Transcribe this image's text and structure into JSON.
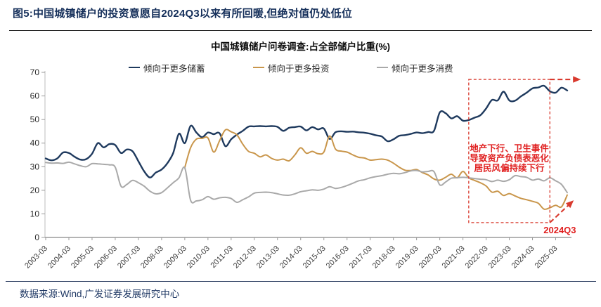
{
  "page": {
    "figure_title": "图5:中国城镇储户的投资意愿自2024Q3以来有所回暖,但绝对值仍处低位",
    "source_text": "数据来源:Wind,广发证券发展研究中心"
  },
  "chart_data": {
    "type": "line",
    "title": "中国城镇储户问卷调查:占全部储户比重(%)",
    "grid": false,
    "legend_position": "top",
    "ylim": [
      0,
      70
    ],
    "yticks": [
      0,
      10,
      20,
      30,
      40,
      50,
      60,
      70
    ],
    "xticks": [
      "2003-03",
      "2004-03",
      "2005-03",
      "2006-03",
      "2007-03",
      "2008-03",
      "2009-03",
      "2010-03",
      "2011-03",
      "2012-03",
      "2013-03",
      "2014-03",
      "2015-03",
      "2016-03",
      "2017-03",
      "2018-03",
      "2019-03",
      "2020-03",
      "2021-03",
      "2022-03",
      "2023-03",
      "2024-03",
      "2025-03"
    ],
    "x": [
      "2003-03",
      "2003-06",
      "2003-09",
      "2003-12",
      "2004-03",
      "2004-06",
      "2004-09",
      "2004-12",
      "2005-03",
      "2005-06",
      "2005-09",
      "2005-12",
      "2006-03",
      "2006-06",
      "2006-09",
      "2006-12",
      "2007-03",
      "2007-06",
      "2007-09",
      "2007-12",
      "2008-03",
      "2008-06",
      "2008-09",
      "2008-12",
      "2009-03",
      "2009-06",
      "2009-09",
      "2009-12",
      "2010-03",
      "2010-06",
      "2010-09",
      "2010-12",
      "2011-03",
      "2011-06",
      "2011-09",
      "2011-12",
      "2012-03",
      "2012-06",
      "2012-09",
      "2012-12",
      "2013-03",
      "2013-06",
      "2013-09",
      "2013-12",
      "2014-03",
      "2014-06",
      "2014-09",
      "2014-12",
      "2015-03",
      "2015-06",
      "2015-09",
      "2015-12",
      "2016-03",
      "2016-06",
      "2016-09",
      "2016-12",
      "2017-03",
      "2017-06",
      "2017-09",
      "2017-12",
      "2018-03",
      "2018-06",
      "2018-09",
      "2018-12",
      "2019-03",
      "2019-06",
      "2019-09",
      "2019-12",
      "2020-03",
      "2020-06",
      "2020-09",
      "2020-12",
      "2021-03",
      "2021-06",
      "2021-09",
      "2021-12",
      "2022-03",
      "2022-06",
      "2022-09",
      "2022-12",
      "2023-03",
      "2023-06",
      "2023-09",
      "2023-12",
      "2024-03",
      "2024-06",
      "2024-09",
      "2024-12",
      "2025-03",
      "2025-06",
      "2025-09"
    ],
    "series": [
      {
        "name": "倾向于更多储蓄",
        "color": "#1f3a5e",
        "values": [
          33.5,
          32.7,
          33.5,
          36.0,
          35.8,
          34.2,
          33.0,
          33.2,
          35.5,
          40.0,
          38.2,
          39.6,
          39.2,
          35.8,
          37.3,
          36.5,
          32.3,
          28.0,
          25.4,
          27.5,
          28.8,
          31.5,
          35.8,
          44.0,
          40.0,
          47.3,
          44.5,
          42.5,
          44.5,
          43.8,
          44.2,
          38.7,
          41.6,
          43.6,
          45.2,
          47.0,
          47.1,
          47.2,
          47.1,
          47.2,
          46.9,
          45.2,
          46.5,
          46.8,
          47.0,
          45.4,
          46.8,
          45.8,
          46.2,
          41.8,
          44.6,
          45.0,
          44.8,
          44.9,
          44.6,
          44.4,
          44.0,
          43.3,
          42.8,
          40.8,
          41.6,
          43.1,
          43.4,
          43.9,
          44.5,
          44.2,
          44.7,
          45.2,
          53.0,
          52.7,
          50.5,
          51.4,
          49.5,
          49.8,
          50.8,
          51.8,
          54.7,
          58.3,
          58.1,
          61.8,
          58.1,
          58.0,
          59.8,
          61.4,
          63.2,
          63.6,
          64.3,
          62.0,
          61.4,
          63.5,
          62.3
        ]
      },
      {
        "name": "倾向于更多投资",
        "color": "#c9964b",
        "values": [
          null,
          null,
          null,
          null,
          null,
          null,
          null,
          null,
          null,
          null,
          null,
          null,
          null,
          null,
          null,
          null,
          null,
          null,
          null,
          null,
          null,
          null,
          null,
          null,
          29.6,
          38.0,
          41.7,
          42.0,
          42.2,
          36.2,
          41.0,
          45.6,
          44.8,
          43.5,
          39.6,
          36.5,
          35.7,
          34.2,
          35.0,
          33.5,
          32.8,
          33.2,
          32.5,
          35.0,
          38.0,
          35.7,
          36.5,
          35.5,
          36.2,
          43.0,
          37.5,
          36.6,
          36.2,
          35.0,
          34.0,
          33.7,
          32.8,
          33.0,
          33.2,
          32.8,
          31.5,
          29.8,
          28.5,
          28.4,
          28.8,
          27.5,
          26.5,
          24.8,
          24.3,
          25.5,
          26.8,
          25.3,
          28.0,
          25.3,
          24.2,
          23.2,
          21.8,
          19.2,
          19.6,
          17.8,
          18.6,
          17.6,
          16.6,
          16.0,
          15.3,
          14.5,
          12.0,
          12.6,
          13.6,
          13.0,
          18.0
        ]
      },
      {
        "name": "倾向于更多消费",
        "color": "#a9a9a9",
        "values": [
          31.8,
          31.5,
          31.6,
          31.4,
          31.9,
          31.2,
          30.4,
          30.0,
          31.3,
          31.2,
          31.0,
          30.8,
          29.8,
          21.7,
          22.5,
          24.2,
          23.2,
          21.7,
          19.6,
          18.5,
          19.0,
          21.0,
          23.2,
          25.3,
          29.5,
          15.8,
          15.5,
          16.0,
          17.3,
          16.2,
          16.8,
          17.0,
          16.5,
          14.9,
          16.0,
          17.2,
          18.8,
          19.1,
          19.2,
          19.0,
          18.5,
          18.0,
          17.9,
          18.5,
          19.4,
          19.8,
          20.2,
          20.0,
          20.5,
          21.5,
          20.8,
          21.2,
          22.0,
          23.0,
          24.0,
          24.5,
          25.3,
          25.8,
          26.2,
          26.8,
          27.2,
          27.0,
          27.5,
          28.2,
          28.4,
          27.8,
          28.0,
          27.9,
          22.3,
          23.5,
          25.1,
          25.3,
          25.5,
          25.3,
          25.0,
          24.7,
          24.5,
          23.7,
          24.3,
          23.8,
          24.5,
          26.2,
          25.8,
          25.5,
          24.3,
          24.8,
          24.0,
          25.3,
          24.0,
          22.5,
          19.0
        ]
      }
    ],
    "annotations": {
      "box": {
        "x_from": "2021-06",
        "x_to": "2024-12",
        "y_top": 67,
        "y_bottom": 6.3,
        "color": "#d93a2e"
      },
      "note": {
        "lines": [
          "地产下行、卫生事件",
          "导致资产负债表恶化",
          "居民风偏持续下行"
        ],
        "x_center": "2023-03",
        "y_center": 33.5,
        "color": "#e01f1f"
      },
      "q_label": {
        "text": "2024Q3",
        "color": "#e01f1f"
      }
    }
  }
}
